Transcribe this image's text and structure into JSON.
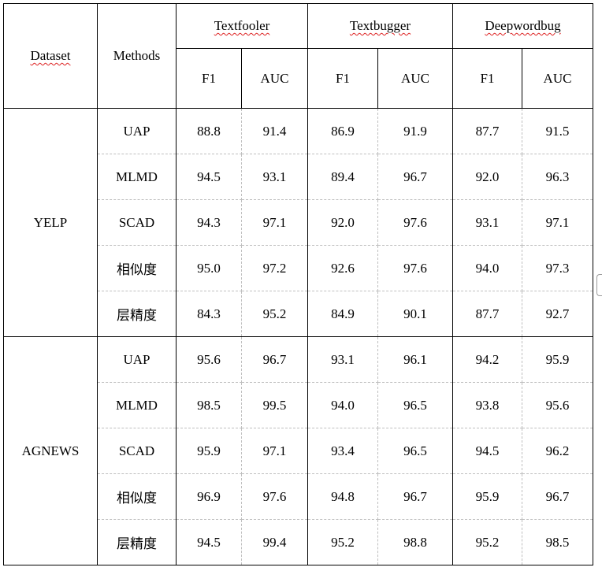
{
  "table": {
    "headers": {
      "dataset": "Dataset",
      "methods": "Methods",
      "groups": [
        {
          "name": "Textfooler",
          "cols": [
            "F1",
            "AUC"
          ]
        },
        {
          "name": "Textbugger",
          "cols": [
            "F1",
            "AUC"
          ]
        },
        {
          "name": "Deepwordbug",
          "cols": [
            "F1",
            "AUC"
          ]
        }
      ]
    },
    "datasets": [
      {
        "name": "YELP",
        "rows": [
          {
            "method": "UAP",
            "values": [
              "88.8",
              "91.4",
              "86.9",
              "91.9",
              "87.7",
              "91.5"
            ],
            "bold": [
              false,
              false,
              false,
              false,
              false,
              false
            ]
          },
          {
            "method": "MLMD",
            "values": [
              "94.5",
              "93.1",
              "89.4",
              "96.7",
              "92.0",
              "96.3"
            ],
            "bold": [
              false,
              false,
              false,
              false,
              false,
              false
            ]
          },
          {
            "method": "SCAD",
            "values": [
              "94.3",
              "97.1",
              "92.0",
              "97.6",
              "93.1",
              "97.1"
            ],
            "bold": [
              false,
              false,
              false,
              false,
              false,
              false
            ]
          },
          {
            "method": "相似度",
            "values": [
              "95.0",
              "97.2",
              "92.6",
              "97.6",
              "94.0",
              "97.3"
            ],
            "bold": [
              true,
              true,
              true,
              true,
              true,
              true
            ]
          },
          {
            "method": "层精度",
            "values": [
              "84.3",
              "95.2",
              "84.9",
              "90.1",
              "87.7",
              "92.7"
            ],
            "bold": [
              false,
              false,
              false,
              false,
              false,
              false
            ]
          }
        ]
      },
      {
        "name": "AGNEWS",
        "rows": [
          {
            "method": "UAP",
            "values": [
              "95.6",
              "96.7",
              "93.1",
              "96.1",
              "94.2",
              "95.9"
            ],
            "bold": [
              false,
              false,
              false,
              false,
              false,
              false
            ]
          },
          {
            "method": "MLMD",
            "values": [
              "98.5",
              "99.5",
              "94.0",
              "96.5",
              "93.8",
              "95.6"
            ],
            "bold": [
              true,
              true,
              false,
              false,
              false,
              false
            ]
          },
          {
            "method": "SCAD",
            "values": [
              "95.9",
              "97.1",
              "93.4",
              "96.5",
              "94.5",
              "96.2"
            ],
            "bold": [
              false,
              false,
              false,
              false,
              false,
              false
            ]
          },
          {
            "method": "相似度",
            "values": [
              "96.9",
              "97.6",
              "94.8",
              "96.7",
              "95.9",
              "96.7"
            ],
            "bold": [
              false,
              false,
              true,
              true,
              true,
              true
            ]
          },
          {
            "method": "层精度",
            "values": [
              "94.5",
              "99.4",
              "95.2",
              "98.8",
              "95.2",
              "98.5"
            ],
            "bold": [
              false,
              false,
              true,
              true,
              true,
              true
            ]
          }
        ]
      }
    ]
  }
}
